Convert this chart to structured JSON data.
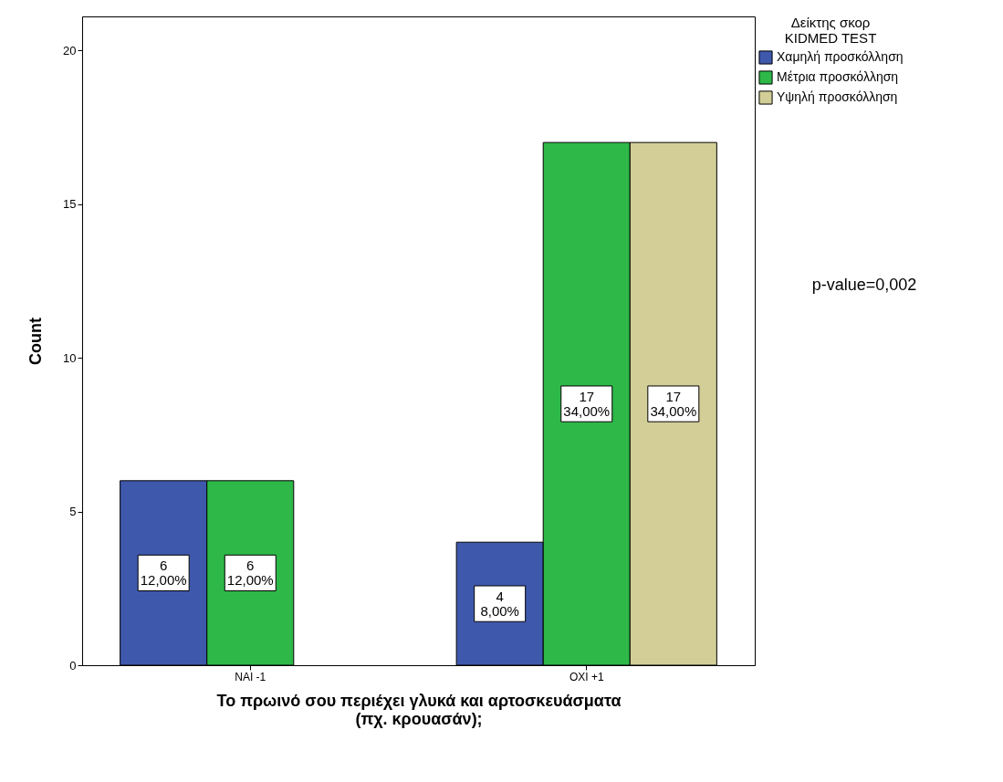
{
  "chart_data": {
    "type": "bar",
    "xlabel": "Το πρωινό σου περιέχει γλυκά και αρτοσκευάσματα\n(πχ. κρουασάν);",
    "ylabel": "Count",
    "legend_title": "Δείκτης σκορ\nKIDMED TEST",
    "categories": [
      "ΝΑΙ -1",
      "ΟΧΙ +1"
    ],
    "series": [
      {
        "name": "Χαμηλή προσκόλληση",
        "color": "#3e58ac",
        "values": [
          6,
          4
        ],
        "value_labels": [
          "6\n12,00%",
          "4\n8,00%"
        ]
      },
      {
        "name": "Μέτρια προσκόλληση",
        "color": "#2eb848",
        "values": [
          6,
          17
        ],
        "value_labels": [
          "6\n12,00%",
          "17\n34,00%"
        ]
      },
      {
        "name": "Υψηλή προσκόλληση",
        "color": "#d3ce97",
        "values": [
          null,
          17
        ],
        "value_labels": [
          null,
          "17\n34,00%"
        ]
      }
    ],
    "ylim": [
      0,
      21.1
    ],
    "yticks": [
      0,
      5,
      10,
      15,
      20
    ],
    "grid": false,
    "legend": "top right",
    "annotations": [
      "p-value=0,002"
    ]
  }
}
